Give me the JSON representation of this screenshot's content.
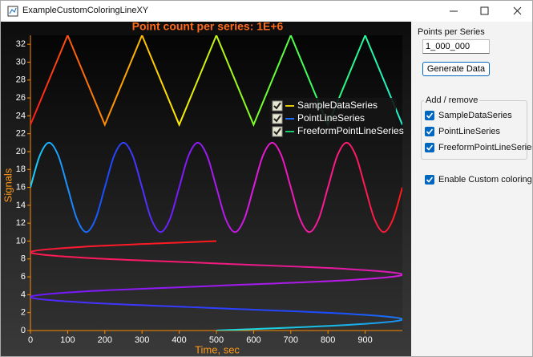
{
  "window": {
    "title": "ExampleCustomColoringLineXY"
  },
  "chart_data": {
    "type": "line",
    "title": "Point count per series: 1E+6",
    "x_label": "Time, sec",
    "y_label": "Signals",
    "xlim": [
      0,
      1000
    ],
    "ylim": [
      0,
      33
    ],
    "xticks": [
      0,
      100,
      200,
      300,
      400,
      500,
      600,
      700,
      800,
      900
    ],
    "yticks": [
      0,
      2,
      4,
      6,
      8,
      10,
      12,
      14,
      16,
      18,
      20,
      22,
      24,
      26,
      28,
      30,
      32
    ],
    "grid": false,
    "legend": "upper right",
    "series": [
      {
        "name": "SampleDataSeries",
        "color": "#e0c800",
        "checked": true,
        "smooth": false,
        "gradient_axis": "x",
        "gradient": [
          "#ff1a1a",
          "#ff8c00",
          "#ffee00",
          "#7dff20",
          "#2bff70",
          "#20f0d0"
        ],
        "x": [
          0,
          100,
          200,
          300,
          400,
          500,
          600,
          700,
          800,
          900,
          1000
        ],
        "values": [
          23,
          33,
          23,
          33,
          23,
          33,
          23,
          33,
          23,
          33,
          23
        ]
      },
      {
        "name": "PointLineSeries",
        "color": "#1a6cff",
        "checked": true,
        "smooth": true,
        "gradient_axis": "x",
        "gradient": [
          "#19d4ff",
          "#1a4cff",
          "#7a1aff",
          "#e01ae0",
          "#ff1a90",
          "#ff1a1a"
        ],
        "x": [
          0,
          25,
          50,
          75,
          100,
          125,
          150,
          175,
          200,
          225,
          250,
          275,
          300,
          325,
          350,
          375,
          400,
          425,
          450,
          475,
          500,
          525,
          550,
          575,
          600,
          625,
          650,
          675,
          700,
          725,
          750,
          775,
          800,
          825,
          850,
          875,
          900,
          925,
          950,
          975,
          1000
        ],
        "values": [
          16,
          19.54,
          21,
          19.54,
          16,
          12.46,
          11,
          12.46,
          16,
          19.54,
          21,
          19.54,
          16,
          12.46,
          11,
          12.46,
          16,
          19.54,
          21,
          19.54,
          16,
          12.46,
          11,
          12.46,
          16,
          19.54,
          21,
          19.54,
          16,
          12.46,
          11,
          12.46,
          16,
          19.54,
          21,
          19.54,
          16,
          12.46,
          11,
          12.46,
          16
        ]
      },
      {
        "name": "FreeformPointLineSeries",
        "color": "#1acc70",
        "checked": true,
        "smooth": true,
        "gradient_axis": "y",
        "gradient": [
          "#19e0e0",
          "#1a4cff",
          "#6a1aff",
          "#d01ae0",
          "#ff1a60",
          "#ff1a1a"
        ],
        "x": [
          500,
          853.6,
          1000,
          853.6,
          500,
          146.4,
          0,
          146.4,
          500,
          853.6,
          1000,
          853.6,
          500,
          146.4,
          0,
          146.4,
          500
        ],
        "values": [
          0,
          0.625,
          1.25,
          1.875,
          2.5,
          3.125,
          3.75,
          4.375,
          5,
          5.625,
          6.25,
          6.875,
          7.5,
          8.125,
          8.75,
          9.375,
          10
        ]
      }
    ]
  },
  "panel": {
    "points_label": "Points per Series",
    "points_value": "1_000_000",
    "generate_button": "Generate Data",
    "group_title": "Add / remove",
    "checkboxes": [
      {
        "label": "SampleDataSeries",
        "checked": true
      },
      {
        "label": "PointLineSeries",
        "checked": true
      },
      {
        "label": "FreeformPointLineSeries",
        "checked": true
      }
    ],
    "custom_coloring": {
      "label": "Enable Custom coloring",
      "checked": true
    }
  }
}
